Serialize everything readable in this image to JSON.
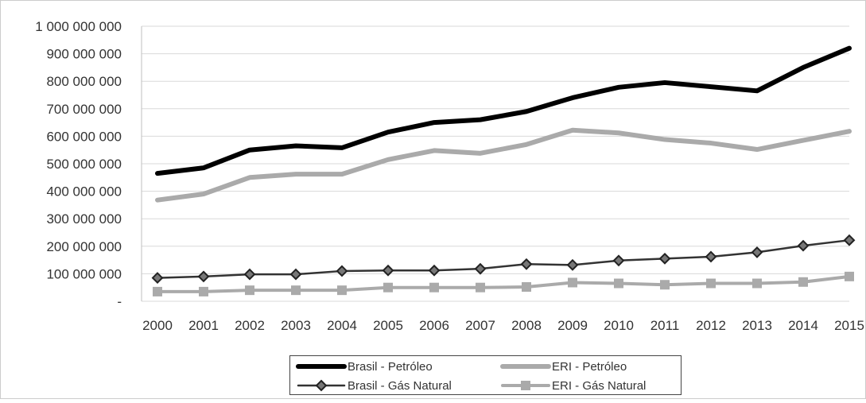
{
  "chart_data": {
    "type": "line",
    "title": "",
    "xlabel": "",
    "ylabel": "",
    "x": [
      "2000",
      "2001",
      "2002",
      "2003",
      "2004",
      "2005",
      "2006",
      "2007",
      "2008",
      "2009",
      "2010",
      "2011",
      "2012",
      "2013",
      "2014",
      "2015"
    ],
    "ylim": [
      0,
      1000000000
    ],
    "yticks": [
      {
        "value": 0,
        "label": "-"
      },
      {
        "value": 100000000,
        "label": "100 000 000"
      },
      {
        "value": 200000000,
        "label": "200 000 000"
      },
      {
        "value": 300000000,
        "label": "300 000 000"
      },
      {
        "value": 400000000,
        "label": "400 000 000"
      },
      {
        "value": 500000000,
        "label": "500 000 000"
      },
      {
        "value": 600000000,
        "label": "600 000 000"
      },
      {
        "value": 700000000,
        "label": "700 000 000"
      },
      {
        "value": 800000000,
        "label": "800 000 000"
      },
      {
        "value": 900000000,
        "label": "900 000 000"
      },
      {
        "value": 1000000000,
        "label": "1 000 000 000"
      }
    ],
    "grid": true,
    "legend_position": "bottom",
    "series": [
      {
        "name": "Brasil - Petróleo",
        "color": "#000000",
        "marker": "none",
        "values": [
          465000000,
          485000000,
          550000000,
          565000000,
          558000000,
          615000000,
          650000000,
          660000000,
          690000000,
          740000000,
          778000000,
          795000000,
          780000000,
          765000000,
          850000000,
          920000000
        ]
      },
      {
        "name": "ERI - Petróleo",
        "color": "#aaaaaa",
        "marker": "none",
        "values": [
          368000000,
          390000000,
          450000000,
          462000000,
          462000000,
          515000000,
          548000000,
          538000000,
          570000000,
          622000000,
          612000000,
          588000000,
          575000000,
          552000000,
          585000000,
          618000000
        ]
      },
      {
        "name": "Brasil - Gás Natural",
        "color": "#333333",
        "marker": "diamond",
        "values": [
          85000000,
          90000000,
          98000000,
          98000000,
          110000000,
          112000000,
          112000000,
          118000000,
          135000000,
          132000000,
          148000000,
          155000000,
          162000000,
          178000000,
          202000000,
          222000000
        ]
      },
      {
        "name": "ERI - Gás Natural",
        "color": "#aaaaaa",
        "marker": "square",
        "values": [
          35000000,
          35000000,
          40000000,
          40000000,
          40000000,
          50000000,
          50000000,
          50000000,
          52000000,
          68000000,
          65000000,
          60000000,
          65000000,
          65000000,
          70000000,
          90000000
        ]
      }
    ]
  }
}
